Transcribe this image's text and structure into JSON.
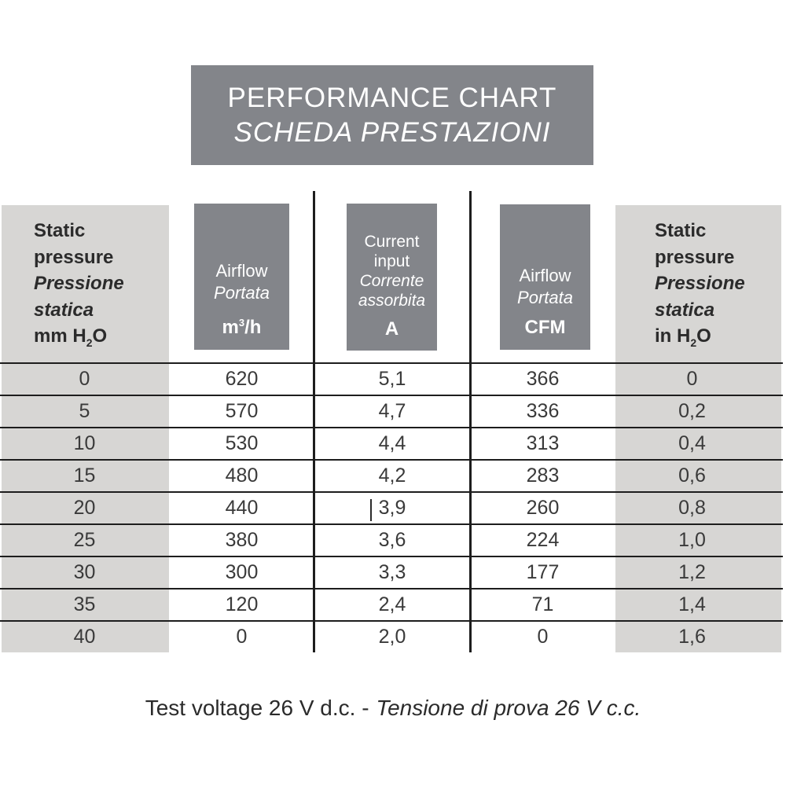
{
  "title": {
    "line1": "PERFORMANCE CHART",
    "line2": "SCHEDA PRESTAZIONI"
  },
  "colors": {
    "header_box_gray": "#83858a",
    "side_column_gray": "#d7d6d4",
    "grid_line": "#1d1d1d",
    "header_text_on_gray": "#ffffff",
    "table_text": "#3a3a3a"
  },
  "headers": {
    "left": {
      "line1": "Static",
      "line2": "pressure",
      "line3": "Pressione",
      "line4": "statica",
      "unit_pre": "mm H",
      "unit_sub": "2",
      "unit_post": "O"
    },
    "airflow_mh": {
      "line1": "Airflow",
      "line2": "Portata",
      "unit_pre": "m",
      "unit_sup": "3",
      "unit_post": "/h"
    },
    "current": {
      "line1": "Current",
      "line2": "input",
      "line3": "Corrente",
      "line4": "assorbita",
      "unit": "A"
    },
    "airflow_cfm": {
      "line1": "Airflow",
      "line2": "Portata",
      "unit": "CFM"
    },
    "right": {
      "line1": "Static",
      "line2": "pressure",
      "line3": "Pressione",
      "line4": "statica",
      "unit_pre": "in H",
      "unit_sub": "2",
      "unit_post": "O"
    }
  },
  "chart_data": {
    "type": "table",
    "title": "PERFORMANCE CHART / SCHEDA PRESTAZIONI",
    "columns": [
      {
        "en": "Static pressure",
        "it": "Pressione statica",
        "unit": "mm H2O"
      },
      {
        "en": "Airflow",
        "it": "Portata",
        "unit": "m3/h"
      },
      {
        "en": "Current input",
        "it": "Corrente assorbita",
        "unit": "A"
      },
      {
        "en": "Airflow",
        "it": "Portata",
        "unit": "CFM"
      },
      {
        "en": "Static pressure",
        "it": "Pressione statica",
        "unit": "in H2O"
      }
    ],
    "rows": [
      [
        "0",
        "620",
        "5,1",
        "366",
        "0"
      ],
      [
        "5",
        "570",
        "4,7",
        "336",
        "0,2"
      ],
      [
        "10",
        "530",
        "4,4",
        "313",
        "0,4"
      ],
      [
        "15",
        "480",
        "4,2",
        "283",
        "0,6"
      ],
      [
        "20",
        "440",
        "3,9",
        "260",
        "0,8"
      ],
      [
        "25",
        "380",
        "3,6",
        "224",
        "1,0"
      ],
      [
        "30",
        "300",
        "3,3",
        "177",
        "1,2"
      ],
      [
        "35",
        "120",
        "2,4",
        "71",
        "1,4"
      ],
      [
        "40",
        "0",
        "2,0",
        "0",
        "1,6"
      ]
    ]
  },
  "footer": {
    "english": "Test voltage 26 V d.c. -",
    "italian": "Tensione di prova 26 V c.c."
  }
}
